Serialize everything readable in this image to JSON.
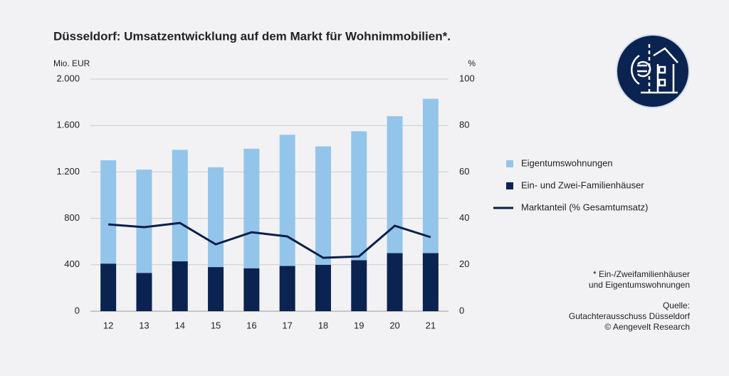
{
  "chart_data": {
    "type": "bar",
    "stacked": true,
    "title": "Düsseldorf: Umsatzentwicklung auf dem Markt für Wohnimmobilien*.",
    "y_label": "Mio. EUR",
    "y2_label": "%",
    "categories": [
      "12",
      "13",
      "14",
      "15",
      "16",
      "17",
      "18",
      "19",
      "20",
      "21"
    ],
    "series": [
      {
        "name": "Ein- und Zwei-Familienhäuser",
        "color": "#0b2350",
        "values": [
          410,
          330,
          430,
          380,
          370,
          390,
          400,
          440,
          500,
          500
        ]
      },
      {
        "name": "Eigentumswohnungen",
        "color": "#93c5ea",
        "values": [
          890,
          890,
          960,
          860,
          1030,
          1130,
          1020,
          1110,
          1180,
          1330
        ]
      },
      {
        "name": "Marktanteil (% Gesamtumsatz)",
        "type": "line",
        "axis": "y2",
        "color": "#0b1f4a",
        "values": [
          37.4,
          36.2,
          38,
          28.8,
          34,
          32.2,
          23,
          23.6,
          36.8,
          31.9
        ]
      }
    ],
    "ylim": [
      0,
      2000
    ],
    "yticks": [
      0,
      400,
      800,
      {
        "value": 1200,
        "label": "1.200"
      },
      {
        "value": 1600,
        "label": "1.600"
      },
      {
        "value": 2000,
        "label": "2.000"
      }
    ],
    "y2lim": [
      0,
      100
    ],
    "y2ticks": [
      0,
      20,
      40,
      60,
      80,
      100
    ],
    "grid": true,
    "notes": [
      "* Ein-/Zweifamilienhäuser",
      "und Eigentumswohnungen"
    ],
    "source": [
      "Quelle:",
      "Gutachterausschuss Düsseldorf",
      "© Aengevelt Research"
    ]
  }
}
